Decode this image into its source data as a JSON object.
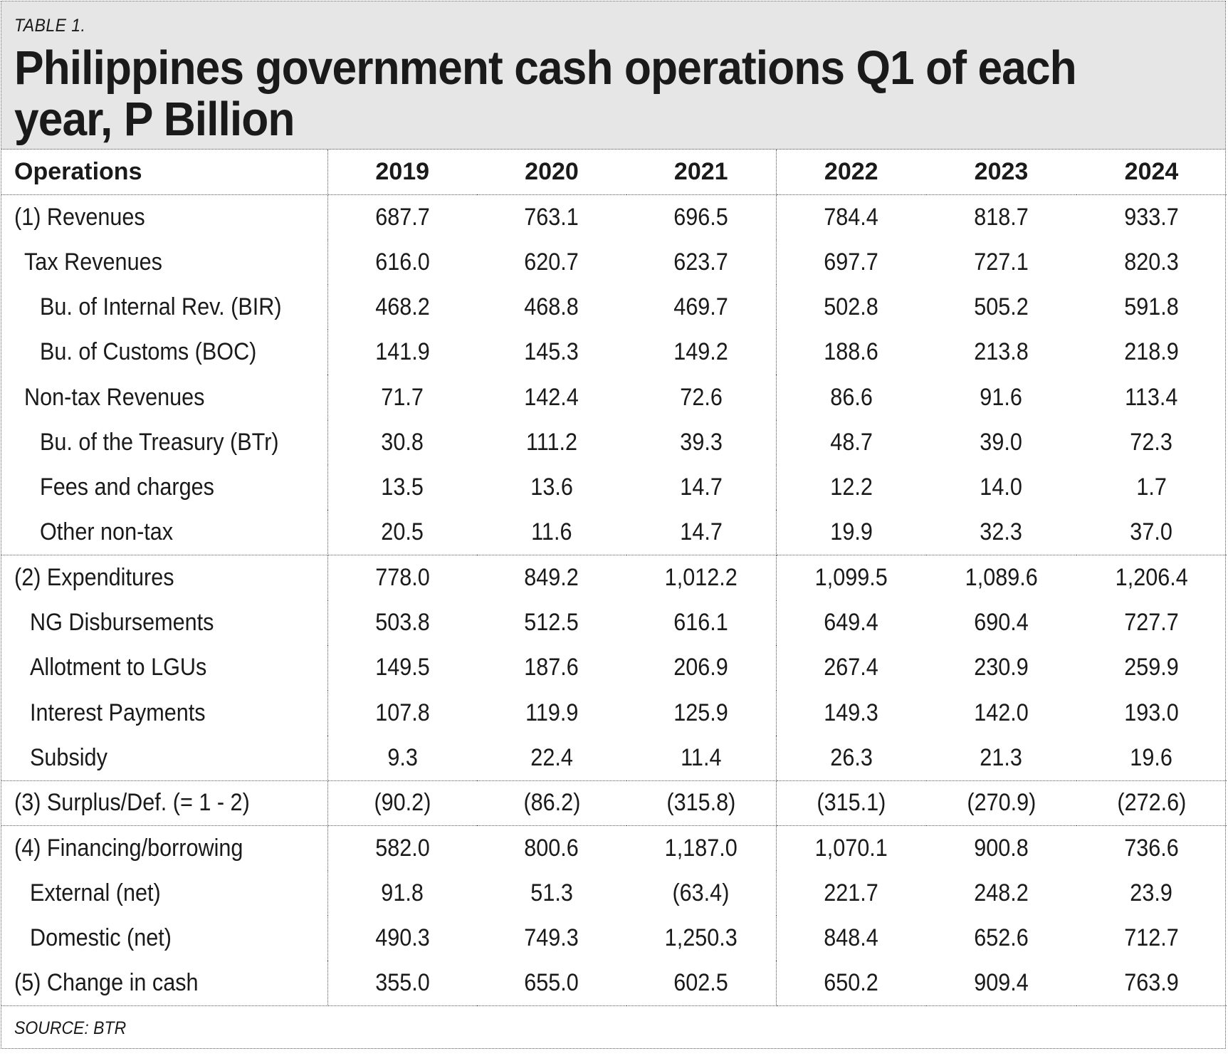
{
  "table_label": "TABLE 1.",
  "title": "Philippines government cash operations Q1 of each year, P Billion",
  "source": "SOURCE: BTR",
  "chart_data": {
    "type": "table",
    "title": "Philippines government cash operations Q1 of each year, P Billion",
    "columns": [
      "Operations",
      "2019",
      "2020",
      "2021",
      "2022",
      "2023",
      "2024"
    ],
    "rows": [
      {
        "label": "(1) Revenues",
        "level": 0,
        "values": [
          "687.7",
          "763.1",
          "696.5",
          "784.4",
          "818.7",
          "933.7"
        ]
      },
      {
        "label": "Tax Revenues",
        "level": 1,
        "values": [
          "616.0",
          "620.7",
          "623.7",
          "697.7",
          "727.1",
          "820.3"
        ]
      },
      {
        "label": "Bu. of Internal Rev. (BIR)",
        "level": 2,
        "values": [
          "468.2",
          "468.8",
          "469.7",
          "502.8",
          "505.2",
          "591.8"
        ]
      },
      {
        "label": "Bu. of Customs (BOC)",
        "level": 2,
        "values": [
          "141.9",
          "145.3",
          "149.2",
          "188.6",
          "213.8",
          "218.9"
        ]
      },
      {
        "label": "Non-tax Revenues",
        "level": 1,
        "values": [
          "71.7",
          "142.4",
          "72.6",
          "86.6",
          "91.6",
          "113.4"
        ]
      },
      {
        "label": "Bu. of the Treasury (BTr)",
        "level": 2,
        "values": [
          "30.8",
          "111.2",
          "39.3",
          "48.7",
          "39.0",
          "72.3"
        ]
      },
      {
        "label": "Fees and charges",
        "level": 2,
        "values": [
          "13.5",
          "13.6",
          "14.7",
          "12.2",
          "14.0",
          "1.7"
        ]
      },
      {
        "label": "Other non-tax",
        "level": 2,
        "values": [
          "20.5",
          "11.6",
          "14.7",
          "19.9",
          "32.3",
          "37.0"
        ],
        "section_end": true
      },
      {
        "label": "(2) Expenditures",
        "level": 0,
        "values": [
          "778.0",
          "849.2",
          "1,012.2",
          "1,099.5",
          "1,089.6",
          "1,206.4"
        ]
      },
      {
        "label": "NG Disbursements",
        "level": 3,
        "values": [
          "503.8",
          "512.5",
          "616.1",
          "649.4",
          "690.4",
          "727.7"
        ]
      },
      {
        "label": "Allotment to LGUs",
        "level": 3,
        "values": [
          "149.5",
          "187.6",
          "206.9",
          "267.4",
          "230.9",
          "259.9"
        ]
      },
      {
        "label": "Interest Payments",
        "level": 3,
        "values": [
          "107.8",
          "119.9",
          "125.9",
          "149.3",
          "142.0",
          "193.0"
        ]
      },
      {
        "label": "Subsidy",
        "level": 3,
        "values": [
          "9.3",
          "22.4",
          "11.4",
          "26.3",
          "21.3",
          "19.6"
        ],
        "section_end": true
      },
      {
        "label": "(3) Surplus/Def. (= 1 - 2)",
        "level": 0,
        "values": [
          "(90.2)",
          "(86.2)",
          "(315.8)",
          "(315.1)",
          "(270.9)",
          "(272.6)"
        ],
        "section_end": true
      },
      {
        "label": "(4) Financing/borrowing",
        "level": 0,
        "values": [
          "582.0",
          "800.6",
          "1,187.0",
          "1,070.1",
          "900.8",
          "736.6"
        ]
      },
      {
        "label": "External (net)",
        "level": 3,
        "values": [
          "91.8",
          "51.3",
          "(63.4)",
          "221.7",
          "248.2",
          "23.9"
        ]
      },
      {
        "label": "Domestic (net)",
        "level": 3,
        "values": [
          "490.3",
          "749.3",
          "1,250.3",
          "848.4",
          "652.6",
          "712.7"
        ]
      },
      {
        "label": "(5) Change in cash",
        "level": 0,
        "values": [
          "355.0",
          "655.0",
          "602.5",
          "650.2",
          "909.4",
          "763.9"
        ],
        "section_end": true
      }
    ]
  }
}
